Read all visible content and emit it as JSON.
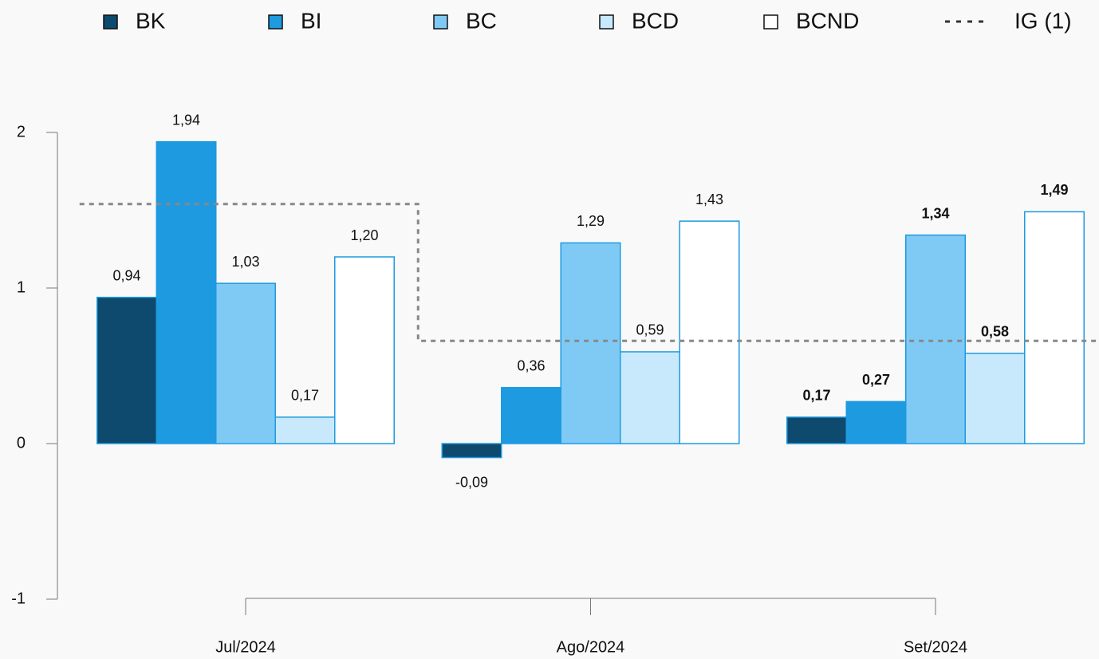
{
  "chart_data": {
    "type": "bar",
    "categories": [
      "Jul/2024",
      "Ago/2024",
      "Set/2024"
    ],
    "series": [
      {
        "name": "BK",
        "color": "#0d4a6e",
        "values": [
          0.94,
          -0.09,
          0.17
        ],
        "value_labels": [
          "0,94",
          "-0,09",
          "0,17"
        ]
      },
      {
        "name": "BI",
        "color": "#1e9ae0",
        "values": [
          1.94,
          0.36,
          0.27
        ],
        "value_labels": [
          "1,94",
          "0,36",
          "0,27"
        ]
      },
      {
        "name": "BC",
        "color": "#7fcaf5",
        "values": [
          1.03,
          1.29,
          1.34
        ],
        "value_labels": [
          "1,03",
          "1,29",
          "1,34"
        ]
      },
      {
        "name": "BCD",
        "color": "#c8e9fc",
        "values": [
          0.17,
          0.59,
          0.58
        ],
        "value_labels": [
          "0,17",
          "0,59",
          "0,58"
        ]
      },
      {
        "name": "BCND",
        "color": "#ffffff",
        "values": [
          1.2,
          1.43,
          1.49
        ],
        "value_labels": [
          "1,20",
          "1,43",
          "1,49"
        ]
      },
      {
        "name": "IG (1)",
        "type": "step",
        "color": "#888888",
        "dashed": true,
        "values": [
          1.54,
          0.66,
          0.66
        ]
      }
    ],
    "bar_stroke": "#1e9ae0",
    "bold_value_labels": [
      false,
      false,
      true
    ],
    "ylim": [
      -1,
      2
    ],
    "yticks": [
      -1,
      0,
      1,
      2
    ],
    "legend": "top"
  }
}
